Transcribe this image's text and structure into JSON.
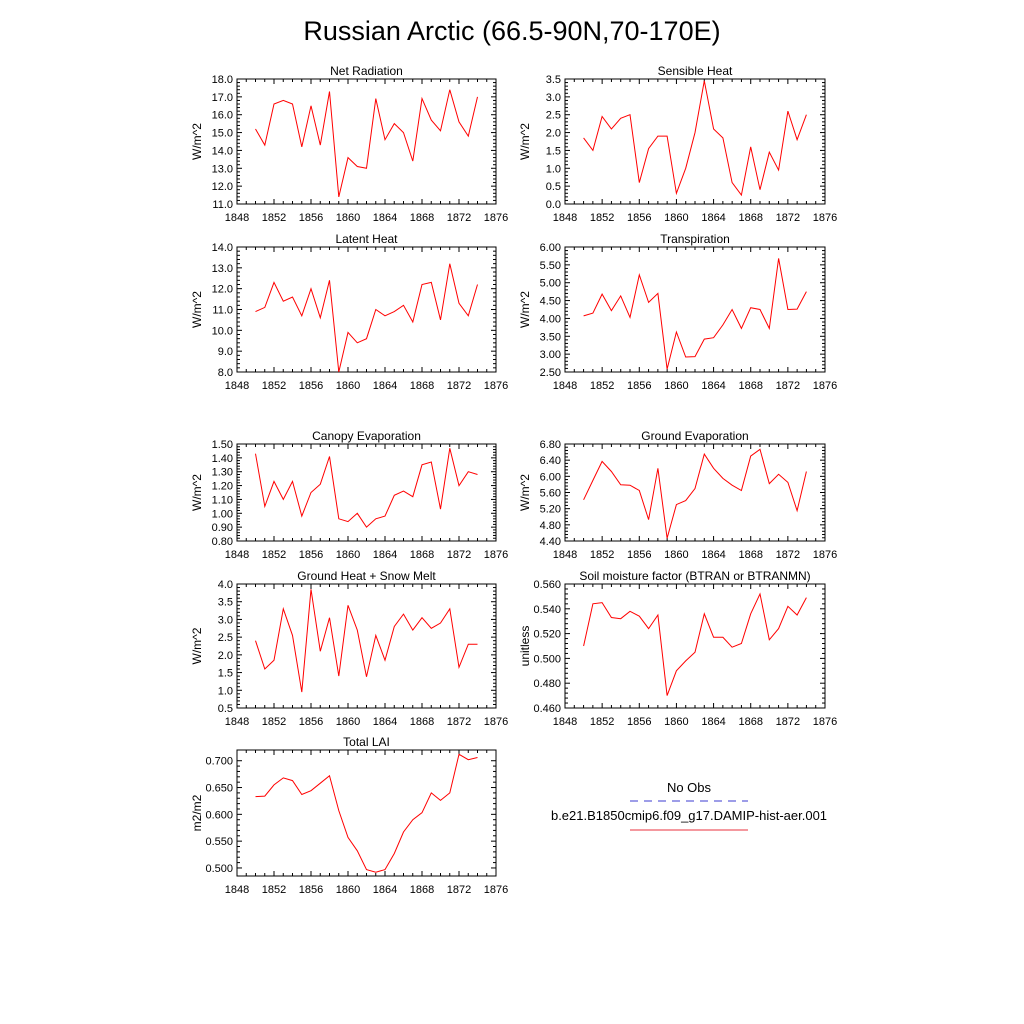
{
  "page": {
    "title": "Russian Arctic (66.5-90N,70-170E)"
  },
  "legend": {
    "obs_label": "No Obs",
    "obs_color": "#3b3bd0",
    "model_label": "b.e21.B1850cmip6.f09_g17.DAMIP-hist-aer.001",
    "model_color": "#e8323c"
  },
  "colors": {
    "series": "#ff0000",
    "axis": "#000000"
  },
  "chart_data": [
    {
      "type": "line",
      "title": "Net Radiation",
      "ylabel": "W/m^2",
      "xlim": [
        1848,
        1876
      ],
      "ylim": [
        11.0,
        18.0
      ],
      "x_ticks": [
        1848,
        1852,
        1856,
        1860,
        1864,
        1868,
        1872,
        1876
      ],
      "y_ticks": [
        "11.0",
        "12.0",
        "13.0",
        "14.0",
        "15.0",
        "16.0",
        "17.0",
        "18.0"
      ],
      "series": [
        {
          "x": [
            1850,
            1851,
            1852,
            1853,
            1854,
            1855,
            1856,
            1857,
            1858,
            1859,
            1860,
            1861,
            1862,
            1863,
            1864,
            1865,
            1866,
            1867,
            1868,
            1869,
            1870,
            1871,
            1872,
            1873,
            1874
          ],
          "values": [
            15.2,
            14.3,
            16.6,
            16.8,
            16.6,
            14.2,
            16.5,
            14.3,
            17.3,
            11.4,
            13.6,
            13.1,
            13.0,
            16.9,
            14.6,
            15.5,
            15.0,
            13.4,
            16.9,
            15.7,
            15.1,
            17.4,
            15.6,
            14.8,
            17.0
          ]
        }
      ]
    },
    {
      "type": "line",
      "title": "Sensible Heat",
      "ylabel": "W/m^2",
      "xlim": [
        1848,
        1876
      ],
      "ylim": [
        0.0,
        3.5
      ],
      "x_ticks": [
        1848,
        1852,
        1856,
        1860,
        1864,
        1868,
        1872,
        1876
      ],
      "y_ticks": [
        "0.0",
        "0.5",
        "1.0",
        "1.5",
        "2.0",
        "2.5",
        "3.0",
        "3.5"
      ],
      "series": [
        {
          "x": [
            1850,
            1851,
            1852,
            1853,
            1854,
            1855,
            1856,
            1857,
            1858,
            1859,
            1860,
            1861,
            1862,
            1863,
            1864,
            1865,
            1866,
            1867,
            1868,
            1869,
            1870,
            1871,
            1872,
            1873,
            1874
          ],
          "values": [
            1.85,
            1.5,
            2.45,
            2.1,
            2.4,
            2.5,
            0.6,
            1.55,
            1.9,
            1.9,
            0.3,
            1.0,
            2.0,
            3.45,
            2.1,
            1.85,
            0.6,
            0.25,
            1.6,
            0.4,
            1.45,
            0.95,
            2.6,
            1.8,
            2.5
          ]
        }
      ]
    },
    {
      "type": "line",
      "title": "Latent Heat",
      "ylabel": "W/m^2",
      "xlim": [
        1848,
        1876
      ],
      "ylim": [
        8.0,
        14.0
      ],
      "x_ticks": [
        1848,
        1852,
        1856,
        1860,
        1864,
        1868,
        1872,
        1876
      ],
      "y_ticks": [
        "8.0",
        "9.0",
        "10.0",
        "11.0",
        "12.0",
        "13.0",
        "14.0"
      ],
      "series": [
        {
          "x": [
            1850,
            1851,
            1852,
            1853,
            1854,
            1855,
            1856,
            1857,
            1858,
            1859,
            1860,
            1861,
            1862,
            1863,
            1864,
            1865,
            1866,
            1867,
            1868,
            1869,
            1870,
            1871,
            1872,
            1873,
            1874
          ],
          "values": [
            10.9,
            11.1,
            12.3,
            11.4,
            11.6,
            10.7,
            12.0,
            10.6,
            12.4,
            8.0,
            9.9,
            9.4,
            9.6,
            11.0,
            10.7,
            10.9,
            11.2,
            10.4,
            12.2,
            12.3,
            10.5,
            13.2,
            11.3,
            10.7,
            12.2
          ]
        }
      ]
    },
    {
      "type": "line",
      "title": "Transpiration",
      "ylabel": "W/m^2",
      "xlim": [
        1848,
        1876
      ],
      "ylim": [
        2.5,
        6.0
      ],
      "x_ticks": [
        1848,
        1852,
        1856,
        1860,
        1864,
        1868,
        1872,
        1876
      ],
      "y_ticks": [
        "2.50",
        "3.00",
        "3.50",
        "4.00",
        "4.50",
        "5.00",
        "5.50",
        "6.00"
      ],
      "series": [
        {
          "x": [
            1850,
            1851,
            1852,
            1853,
            1854,
            1855,
            1856,
            1857,
            1858,
            1859,
            1860,
            1861,
            1862,
            1863,
            1864,
            1865,
            1866,
            1867,
            1868,
            1869,
            1870,
            1871,
            1872,
            1873,
            1874
          ],
          "values": [
            4.07,
            4.15,
            4.68,
            4.22,
            4.63,
            4.03,
            5.22,
            4.45,
            4.7,
            2.58,
            3.62,
            2.92,
            2.93,
            3.42,
            3.46,
            3.82,
            4.25,
            3.72,
            4.3,
            4.25,
            3.72,
            5.68,
            4.25,
            4.26,
            4.75
          ]
        }
      ]
    },
    {
      "type": "line",
      "title": "Canopy Evaporation",
      "ylabel": "W/m^2",
      "xlim": [
        1848,
        1876
      ],
      "ylim": [
        0.8,
        1.5
      ],
      "x_ticks": [
        1848,
        1852,
        1856,
        1860,
        1864,
        1868,
        1872,
        1876
      ],
      "y_ticks": [
        "0.80",
        "0.90",
        "1.00",
        "1.10",
        "1.20",
        "1.30",
        "1.40",
        "1.50"
      ],
      "series": [
        {
          "x": [
            1850,
            1851,
            1852,
            1853,
            1854,
            1855,
            1856,
            1857,
            1858,
            1859,
            1860,
            1861,
            1862,
            1863,
            1864,
            1865,
            1866,
            1867,
            1868,
            1869,
            1870,
            1871,
            1872,
            1873,
            1874
          ],
          "values": [
            1.43,
            1.05,
            1.23,
            1.1,
            1.23,
            0.98,
            1.15,
            1.21,
            1.41,
            0.96,
            0.94,
            1.0,
            0.9,
            0.96,
            0.98,
            1.13,
            1.16,
            1.12,
            1.35,
            1.37,
            1.03,
            1.47,
            1.2,
            1.3,
            1.28
          ]
        }
      ]
    },
    {
      "type": "line",
      "title": "Ground Evaporation",
      "ylabel": "W/m^2",
      "xlim": [
        1848,
        1876
      ],
      "ylim": [
        4.4,
        6.8
      ],
      "x_ticks": [
        1848,
        1852,
        1856,
        1860,
        1864,
        1868,
        1872,
        1876
      ],
      "y_ticks": [
        "4.40",
        "4.80",
        "5.20",
        "5.60",
        "6.00",
        "6.40",
        "6.80"
      ],
      "series": [
        {
          "x": [
            1850,
            1851,
            1852,
            1853,
            1854,
            1855,
            1856,
            1857,
            1858,
            1859,
            1860,
            1861,
            1862,
            1863,
            1864,
            1865,
            1866,
            1867,
            1868,
            1869,
            1870,
            1871,
            1872,
            1873,
            1874
          ],
          "values": [
            5.42,
            5.9,
            6.37,
            6.12,
            5.79,
            5.78,
            5.65,
            4.93,
            6.2,
            4.47,
            5.3,
            5.4,
            5.7,
            6.55,
            6.2,
            5.95,
            5.78,
            5.65,
            6.5,
            6.67,
            5.82,
            6.05,
            5.85,
            5.15,
            6.12
          ]
        }
      ]
    },
    {
      "type": "line",
      "title": "Ground Heat + Snow Melt",
      "ylabel": "W/m^2",
      "xlim": [
        1848,
        1876
      ],
      "ylim": [
        0.5,
        4.0
      ],
      "x_ticks": [
        1848,
        1852,
        1856,
        1860,
        1864,
        1868,
        1872,
        1876
      ],
      "y_ticks": [
        "0.5",
        "1.0",
        "1.5",
        "2.0",
        "2.5",
        "3.0",
        "3.5",
        "4.0"
      ],
      "series": [
        {
          "x": [
            1850,
            1851,
            1852,
            1853,
            1854,
            1855,
            1856,
            1857,
            1858,
            1859,
            1860,
            1861,
            1862,
            1863,
            1864,
            1865,
            1866,
            1867,
            1868,
            1869,
            1870,
            1871,
            1872,
            1873,
            1874
          ],
          "values": [
            2.4,
            1.6,
            1.85,
            3.3,
            2.55,
            0.95,
            3.85,
            2.1,
            3.05,
            1.4,
            3.4,
            2.7,
            1.38,
            2.55,
            1.85,
            2.8,
            3.15,
            2.7,
            3.05,
            2.75,
            2.9,
            3.3,
            1.65,
            2.3,
            2.3
          ]
        }
      ]
    },
    {
      "type": "line",
      "title": "Soil moisture factor (BTRAN or BTRANMN)",
      "ylabel": "unitless",
      "xlim": [
        1848,
        1876
      ],
      "ylim": [
        0.46,
        0.56
      ],
      "x_ticks": [
        1848,
        1852,
        1856,
        1860,
        1864,
        1868,
        1872,
        1876
      ],
      "y_ticks": [
        "0.460",
        "0.480",
        "0.500",
        "0.520",
        "0.540",
        "0.560"
      ],
      "series": [
        {
          "x": [
            1850,
            1851,
            1852,
            1853,
            1854,
            1855,
            1856,
            1857,
            1858,
            1859,
            1860,
            1861,
            1862,
            1863,
            1864,
            1865,
            1866,
            1867,
            1868,
            1869,
            1870,
            1871,
            1872,
            1873,
            1874
          ],
          "values": [
            0.51,
            0.544,
            0.545,
            0.533,
            0.532,
            0.538,
            0.534,
            0.524,
            0.535,
            0.47,
            0.49,
            0.498,
            0.505,
            0.536,
            0.517,
            0.517,
            0.509,
            0.512,
            0.536,
            0.552,
            0.515,
            0.524,
            0.542,
            0.535,
            0.549
          ]
        }
      ]
    },
    {
      "type": "line",
      "title": "Total LAI",
      "ylabel": "m2/m2",
      "xlim": [
        1848,
        1876
      ],
      "ylim": [
        0.485,
        0.72
      ],
      "x_ticks": [
        1848,
        1852,
        1856,
        1860,
        1864,
        1868,
        1872,
        1876
      ],
      "y_ticks": [
        "0.500",
        "0.550",
        "0.600",
        "0.650",
        "0.700"
      ],
      "y_tick_values": [
        0.5,
        0.55,
        0.6,
        0.65,
        0.7
      ],
      "series": [
        {
          "x": [
            1850,
            1851,
            1852,
            1853,
            1854,
            1855,
            1856,
            1857,
            1858,
            1859,
            1860,
            1861,
            1862,
            1863,
            1864,
            1865,
            1866,
            1867,
            1868,
            1869,
            1870,
            1871,
            1872,
            1873,
            1874
          ],
          "values": [
            0.633,
            0.634,
            0.655,
            0.668,
            0.663,
            0.637,
            0.644,
            0.658,
            0.672,
            0.607,
            0.557,
            0.532,
            0.497,
            0.492,
            0.497,
            0.527,
            0.567,
            0.59,
            0.603,
            0.64,
            0.626,
            0.64,
            0.712,
            0.702,
            0.706
          ]
        }
      ]
    }
  ]
}
